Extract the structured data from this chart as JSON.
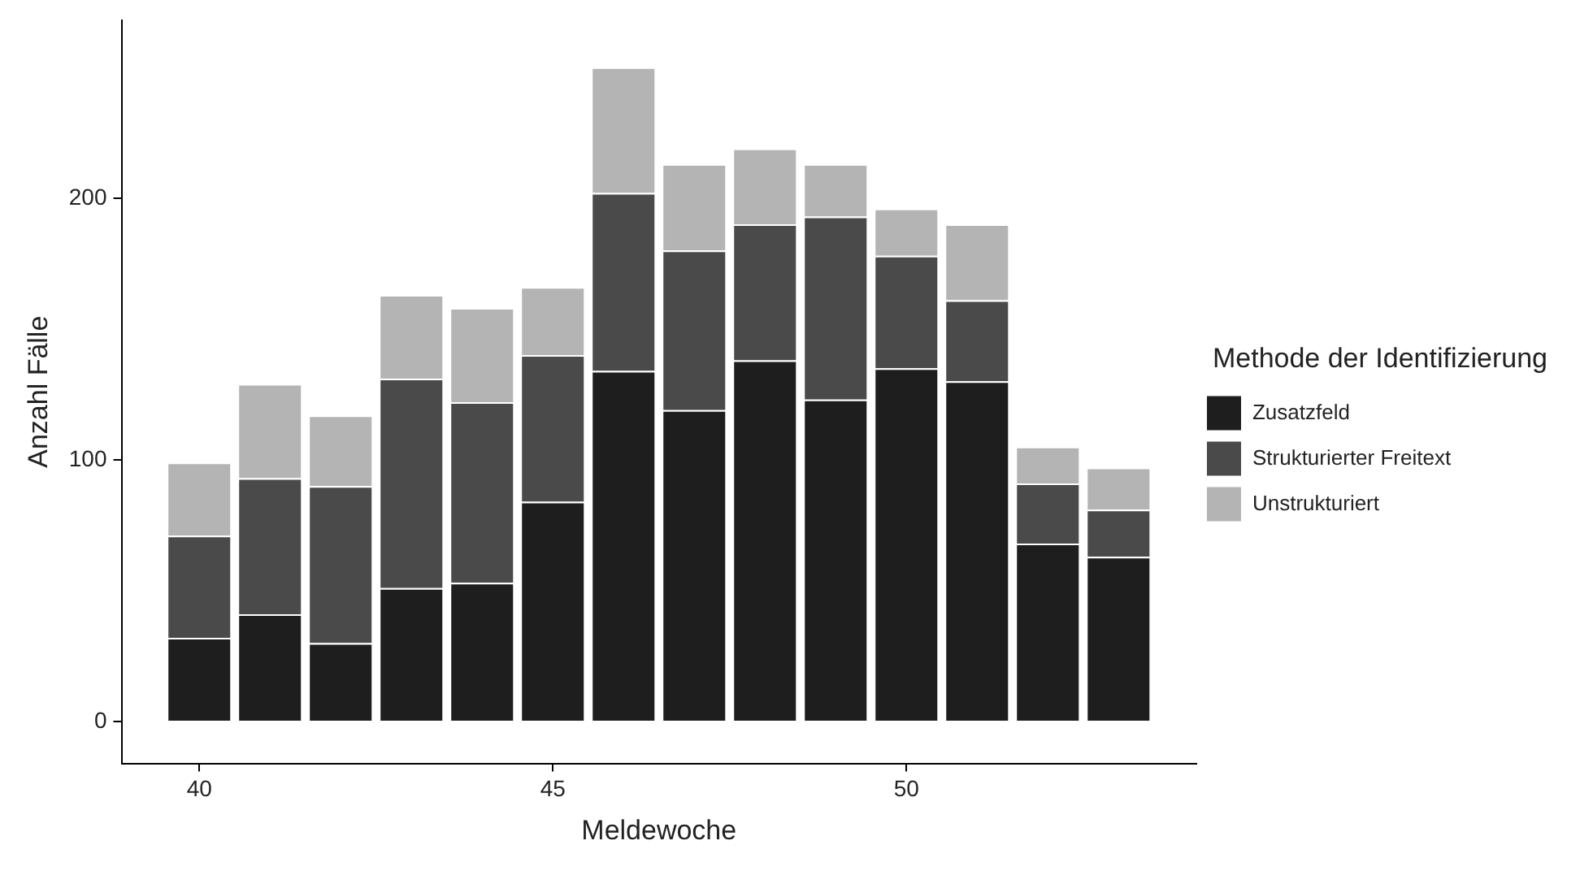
{
  "chart_data": {
    "type": "bar",
    "stacked": true,
    "xlabel": "Meldewoche",
    "ylabel": "Anzahl Fälle",
    "legend_title": "Methode der Identifizierung",
    "legend": "right",
    "grid": false,
    "x": [
      40,
      41,
      42,
      43,
      44,
      45,
      46,
      47,
      48,
      49,
      50,
      51,
      52,
      53
    ],
    "xlim": [
      38.9,
      54.1
    ],
    "xticks": [
      40,
      45,
      50
    ],
    "ylim": [
      -16,
      268
    ],
    "yticks": [
      0,
      100,
      200
    ],
    "series": [
      {
        "name": "Zusatzfeld",
        "color": "#1e1e1e",
        "values": [
          32,
          41,
          30,
          51,
          53,
          84,
          134,
          119,
          138,
          123,
          135,
          130,
          68,
          63
        ]
      },
      {
        "name": "Strukturierter Freitext",
        "color": "#4a4a4a",
        "values": [
          39,
          52,
          60,
          80,
          69,
          56,
          68,
          61,
          52,
          70,
          43,
          31,
          23,
          18
        ]
      },
      {
        "name": "Unstrukturiert",
        "color": "#b4b4b4",
        "values": [
          28,
          36,
          27,
          32,
          36,
          26,
          48,
          33,
          29,
          20,
          18,
          29,
          14,
          16
        ]
      }
    ]
  }
}
